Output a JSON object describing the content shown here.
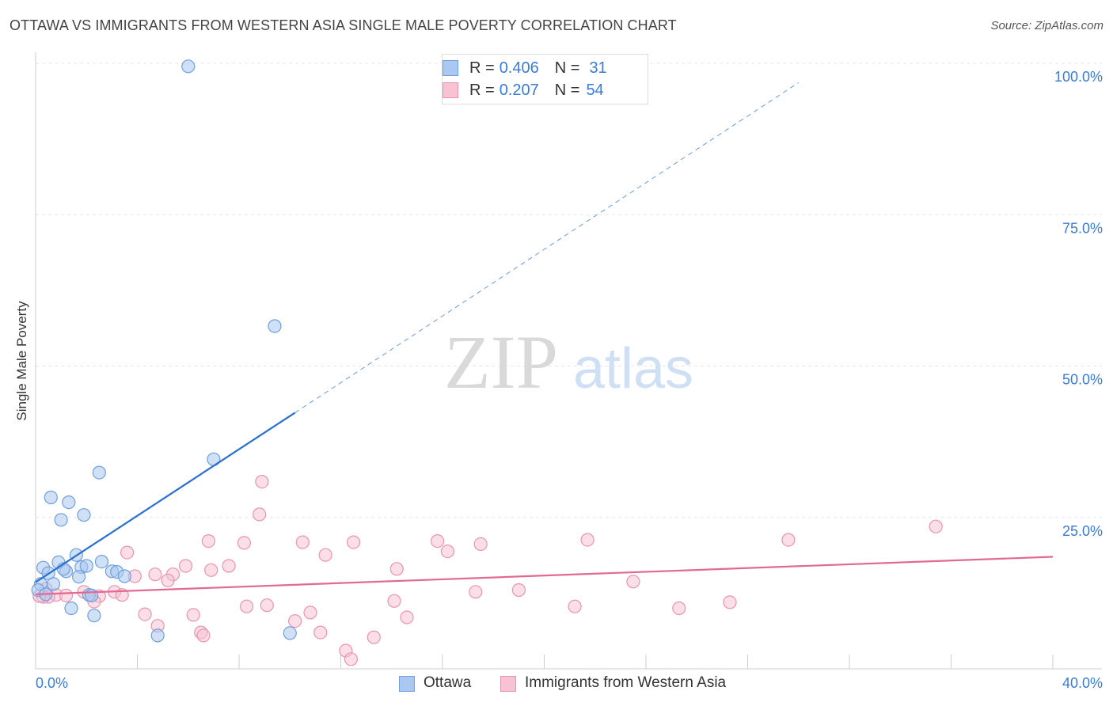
{
  "title": "OTTAWA VS IMMIGRANTS FROM WESTERN ASIA SINGLE MALE POVERTY CORRELATION CHART",
  "source": "Source: ZipAtlas.com",
  "watermark": {
    "zip": "ZIP",
    "atlas": "atlas"
  },
  "colors": {
    "ottawa_fill": "#aac8f0",
    "ottawa_stroke": "#6f9fdc",
    "ottawa_line": "#2a6fcf",
    "imm_fill": "#f7c3d2",
    "imm_stroke": "#e894b0",
    "imm_line": "#e26a92",
    "axis_text": "#3a7bd5",
    "grid": "#e6e6e6"
  },
  "legend_top": {
    "rows": [
      {
        "r_label": "R =",
        "r_value": "0.406",
        "n_label": "N =",
        "n_value": "31"
      },
      {
        "r_label": "R =",
        "r_value": "0.207",
        "n_label": "N =",
        "n_value": "54"
      }
    ]
  },
  "legend_bottom": {
    "items": [
      "Ottawa",
      "Immigrants from Western Asia"
    ]
  },
  "chart_data": {
    "type": "scatter",
    "title": "OTTAWA VS IMMIGRANTS FROM WESTERN ASIA SINGLE MALE POVERTY CORRELATION CHART",
    "xlabel": "",
    "ylabel": "Single Male Poverty",
    "xlim": [
      0,
      40
    ],
    "ylim": [
      0,
      100
    ],
    "x_tick_labels": [
      "0.0%",
      "40.0%"
    ],
    "y_tick_labels": [
      "100.0%",
      "75.0%",
      "50.0%",
      "25.0%"
    ],
    "y_ticks": [
      100,
      75,
      50,
      25
    ],
    "x_minor_ticks": [
      0,
      4,
      8,
      12,
      16,
      20,
      24,
      28,
      32,
      36,
      40
    ],
    "grid": true,
    "series": [
      {
        "name": "Ottawa",
        "r": 0.406,
        "n": 31,
        "trend": {
          "x0": 0,
          "y0": 14.3,
          "x1": 10.2,
          "y1": 42.3,
          "dashed_to_x": 30,
          "dashed_to_y": 96.8
        },
        "points": [
          [
            6.0,
            99.5
          ],
          [
            9.4,
            56.6
          ],
          [
            7.0,
            34.6
          ],
          [
            2.5,
            32.4
          ],
          [
            0.6,
            28.3
          ],
          [
            1.3,
            27.5
          ],
          [
            1.0,
            24.6
          ],
          [
            1.9,
            25.4
          ],
          [
            1.6,
            18.8
          ],
          [
            0.9,
            17.6
          ],
          [
            2.6,
            17.7
          ],
          [
            0.3,
            16.7
          ],
          [
            1.8,
            16.8
          ],
          [
            2.0,
            17.0
          ],
          [
            1.2,
            16.1
          ],
          [
            0.5,
            15.8
          ],
          [
            3.0,
            16.1
          ],
          [
            3.2,
            16.0
          ],
          [
            3.5,
            15.3
          ],
          [
            1.7,
            15.2
          ],
          [
            0.7,
            14.0
          ],
          [
            0.2,
            14.0
          ],
          [
            0.1,
            13.0
          ],
          [
            0.4,
            12.3
          ],
          [
            2.1,
            12.2
          ],
          [
            1.4,
            10.0
          ],
          [
            2.3,
            8.8
          ],
          [
            4.8,
            5.5
          ],
          [
            10.0,
            5.9
          ],
          [
            1.1,
            16.5
          ],
          [
            2.2,
            12.1
          ]
        ]
      },
      {
        "name": "Immigrants from Western Asia",
        "r": 0.207,
        "n": 54,
        "trend": {
          "x0": 0,
          "y0": 12.3,
          "x1": 40,
          "y1": 18.5
        },
        "points": [
          [
            8.9,
            30.9
          ],
          [
            8.8,
            25.5
          ],
          [
            35.4,
            23.5
          ],
          [
            6.8,
            21.1
          ],
          [
            8.2,
            20.8
          ],
          [
            10.5,
            20.9
          ],
          [
            12.5,
            20.9
          ],
          [
            15.8,
            21.1
          ],
          [
            17.5,
            20.6
          ],
          [
            21.7,
            21.3
          ],
          [
            29.6,
            21.3
          ],
          [
            3.6,
            19.2
          ],
          [
            11.4,
            18.8
          ],
          [
            16.2,
            19.4
          ],
          [
            5.9,
            17.0
          ],
          [
            7.6,
            17.0
          ],
          [
            6.9,
            16.3
          ],
          [
            14.2,
            16.5
          ],
          [
            4.7,
            15.6
          ],
          [
            5.4,
            15.6
          ],
          [
            3.9,
            15.3
          ],
          [
            5.2,
            14.6
          ],
          [
            23.5,
            14.4
          ],
          [
            0.4,
            13.2
          ],
          [
            0.8,
            12.2
          ],
          [
            1.9,
            12.7
          ],
          [
            2.5,
            12.0
          ],
          [
            3.1,
            12.7
          ],
          [
            3.4,
            12.2
          ],
          [
            1.2,
            12.1
          ],
          [
            0.5,
            11.9
          ],
          [
            0.3,
            11.9
          ],
          [
            0.15,
            12.0
          ],
          [
            2.3,
            11.1
          ],
          [
            17.3,
            12.7
          ],
          [
            19.0,
            13.0
          ],
          [
            14.1,
            11.2
          ],
          [
            8.3,
            10.3
          ],
          [
            9.1,
            10.5
          ],
          [
            21.2,
            10.3
          ],
          [
            25.3,
            10.0
          ],
          [
            27.3,
            11.0
          ],
          [
            4.3,
            9.0
          ],
          [
            6.2,
            8.9
          ],
          [
            10.8,
            9.3
          ],
          [
            14.6,
            8.5
          ],
          [
            10.2,
            7.9
          ],
          [
            4.8,
            7.1
          ],
          [
            6.5,
            6.0
          ],
          [
            11.2,
            6.0
          ],
          [
            6.6,
            5.5
          ],
          [
            13.3,
            5.2
          ],
          [
            12.2,
            3.0
          ],
          [
            12.4,
            1.6
          ]
        ]
      }
    ]
  }
}
